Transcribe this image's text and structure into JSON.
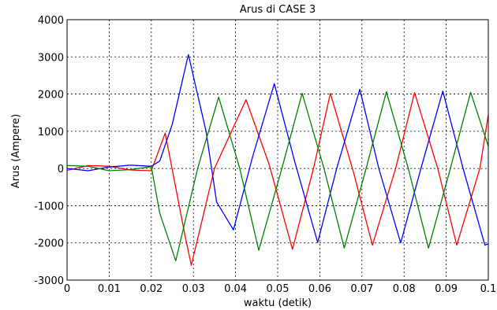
{
  "chart_data": {
    "type": "line",
    "title": "Arus di CASE 3",
    "xlabel": "waktu (detik)",
    "ylabel": "Arus (Ampere)",
    "xlim": [
      0,
      0.1
    ],
    "ylim": [
      -3000,
      4000
    ],
    "xticks": [
      0,
      0.01,
      0.02,
      0.03,
      0.04,
      0.05,
      0.06,
      0.07,
      0.08,
      0.09,
      0.1
    ],
    "xtick_labels": [
      "0",
      "0.01",
      "0.02",
      "0.03",
      "0.04",
      "0.05",
      "0.06",
      "0.07",
      "0.08",
      "0.09",
      "0.1"
    ],
    "yticks": [
      -3000,
      -2000,
      -1000,
      0,
      1000,
      2000,
      3000,
      4000
    ],
    "ytick_labels": [
      "-3000",
      "-2000",
      "-1000",
      "0",
      "1000",
      "2000",
      "3000",
      "4000"
    ],
    "grid": true,
    "series": [
      {
        "color": "#ff0000",
        "x": [
          0,
          0.005,
          0.01,
          0.015,
          0.02,
          0.0233,
          0.028,
          0.0295,
          0.035,
          0.0425,
          0.048,
          0.0535,
          0.0585,
          0.0625,
          0.068,
          0.0725,
          0.078,
          0.0825,
          0.088,
          0.0925,
          0.098,
          0.1
        ],
        "y": [
          -50,
          80,
          60,
          -40,
          -60,
          950,
          -1800,
          -2600,
          0,
          1850,
          100,
          -2170,
          0,
          2020,
          -100,
          -2060,
          0,
          2040,
          0,
          -2060,
          0,
          1450
        ]
      },
      {
        "color": "#0000ff",
        "x": [
          0,
          0.005,
          0.01,
          0.015,
          0.02,
          0.022,
          0.025,
          0.0288,
          0.033,
          0.0355,
          0.0395,
          0.044,
          0.0492,
          0.054,
          0.0595,
          0.064,
          0.0695,
          0.074,
          0.0792,
          0.084,
          0.0892,
          0.094,
          0.0992,
          0.1
        ],
        "y": [
          0,
          -60,
          40,
          90,
          60,
          200,
          1200,
          3060,
          1000,
          -900,
          -1650,
          300,
          2280,
          200,
          -1990,
          0,
          2130,
          0,
          -2000,
          0,
          2080,
          0,
          -2060,
          -2020
        ]
      },
      {
        "color": "#008000",
        "x": [
          0,
          0.005,
          0.01,
          0.015,
          0.02,
          0.022,
          0.0258,
          0.031,
          0.036,
          0.041,
          0.0455,
          0.051,
          0.0558,
          0.061,
          0.0658,
          0.071,
          0.0758,
          0.081,
          0.0858,
          0.091,
          0.0958,
          0.1
        ],
        "y": [
          80,
          60,
          -60,
          -30,
          50,
          -1200,
          -2480,
          0,
          1920,
          0,
          -2200,
          0,
          2020,
          0,
          -2140,
          0,
          2060,
          0,
          -2140,
          0,
          2050,
          600
        ]
      }
    ]
  }
}
